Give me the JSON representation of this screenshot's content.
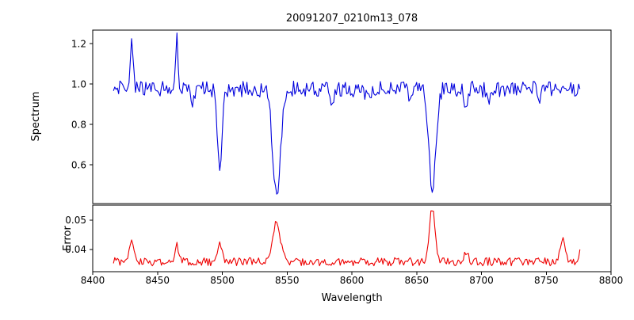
{
  "chart_data": {
    "type": "line",
    "title": "20091207_0210m13_078",
    "xlabel": "Wavelength",
    "x_range": [
      8400,
      8800
    ],
    "x_ticks": [
      8400,
      8450,
      8500,
      8550,
      8600,
      8650,
      8700,
      8750,
      8800
    ],
    "x_tick_labels": [
      "8400",
      "8450",
      "8500",
      "8550",
      "8600",
      "8650",
      "8700",
      "8750",
      "8800"
    ],
    "grid": false,
    "legend": "none",
    "panels": [
      {
        "name": "spectrum",
        "ylabel": "Spectrum",
        "color": "#0000dd",
        "ylim": [
          0.408,
          1.267
        ],
        "yticks": [
          0.6,
          0.8,
          1.0,
          1.2
        ],
        "ytick_labels": [
          "0.6",
          "0.8",
          "1.0",
          "1.2"
        ],
        "series": {
          "x_start": 8416,
          "x_end": 8776,
          "step": 1,
          "baseline": 0.975,
          "noise_amp": 0.04,
          "seed": 7,
          "features": [
            {
              "center": 8430,
              "amp": 0.235,
              "sigma": 1.1,
              "note": "emission spike to ~1.21"
            },
            {
              "center": 8465,
              "amp": 0.245,
              "sigma": 0.9,
              "note": "emission spike to ~1.21"
            },
            {
              "center": 8477,
              "amp": -0.07,
              "sigma": 1.2
            },
            {
              "center": 8498,
              "amp": -0.385,
              "sigma": 1.7,
              "note": "deep absorption to ~0.60"
            },
            {
              "center": 8523,
              "amp": -0.05,
              "sigma": 1.5
            },
            {
              "center": 8542,
              "amp": -0.505,
              "sigma": 3.1,
              "note": "deepest absorption to ~0.48"
            },
            {
              "center": 8585,
              "amp": -0.06,
              "sigma": 2.0
            },
            {
              "center": 8612,
              "amp": -0.045,
              "sigma": 1.5
            },
            {
              "center": 8645,
              "amp": -0.05,
              "sigma": 1.5
            },
            {
              "center": 8662,
              "amp": -0.49,
              "sigma": 2.7,
              "note": "deep absorption to ~0.49"
            },
            {
              "center": 8688,
              "amp": -0.1,
              "sigma": 1.3
            },
            {
              "center": 8705,
              "amp": -0.05,
              "sigma": 1.5
            },
            {
              "center": 8745,
              "amp": -0.05,
              "sigma": 1.6
            }
          ]
        }
      },
      {
        "name": "error",
        "ylabel": "Error",
        "color": "#ee0000",
        "ylim": [
          0.0324,
          0.0551
        ],
        "yticks": [
          0.04,
          0.05
        ],
        "ytick_labels": [
          "0.04",
          "0.05"
        ],
        "series": {
          "x_start": 8416,
          "x_end": 8776,
          "step": 1,
          "baseline": 0.0358,
          "noise_amp": 0.0014,
          "seed": 3,
          "features": [
            {
              "center": 8430,
              "amp": 0.008,
              "sigma": 1.4,
              "note": "error bump ~0.044"
            },
            {
              "center": 8465,
              "amp": 0.0065,
              "sigma": 1.2
            },
            {
              "center": 8498,
              "amp": 0.0068,
              "sigma": 1.7
            },
            {
              "center": 8542,
              "amp": 0.0138,
              "sigma": 2.8,
              "note": "error peak ~0.050"
            },
            {
              "center": 8662,
              "amp": 0.0182,
              "sigma": 2.2,
              "note": "error peak ~0.054"
            },
            {
              "center": 8688,
              "amp": 0.003,
              "sigma": 1.8
            },
            {
              "center": 8763,
              "amp": 0.007,
              "sigma": 2.0
            },
            {
              "center": 8778,
              "amp": 0.0085,
              "sigma": 1.4
            }
          ]
        }
      }
    ]
  }
}
